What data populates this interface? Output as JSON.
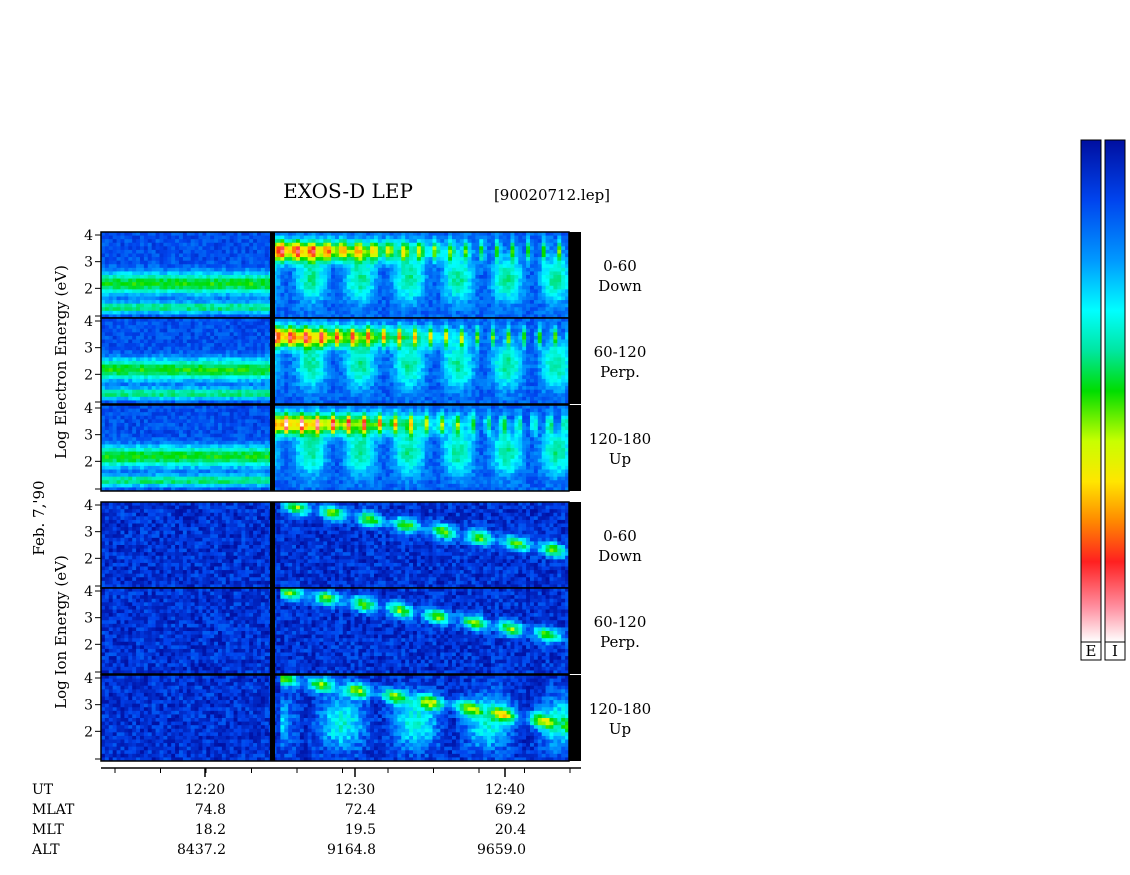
{
  "title": "EXOS-D LEP",
  "filename": "[90020712.lep]",
  "date_label": "Feb. 7,'90",
  "colorbar_labels": [
    "E",
    "I"
  ],
  "colors": {
    "background": "#ffffff",
    "colormap": [
      "#ffffff",
      "#ff8fa0",
      "#ff2020",
      "#ff8800",
      "#ffe600",
      "#c8ff00",
      "#00dd00",
      "#00e6a0",
      "#00ffff",
      "#0099ff",
      "#0044ee",
      "#000fa0"
    ]
  },
  "chart_data": {
    "type": "heatmap",
    "x_axis": {
      "label": "UT",
      "ticks": [
        "12:20",
        "12:30",
        "12:40"
      ],
      "rows": [
        {
          "label": "MLAT",
          "values": [
            "74.8",
            "72.4",
            "69.2"
          ]
        },
        {
          "label": "MLT",
          "values": [
            "18.2",
            "19.5",
            "20.4"
          ]
        },
        {
          "label": "ALT",
          "values": [
            "8437.2",
            "9164.8",
            "9659.0"
          ]
        }
      ]
    },
    "y_axis": {
      "ticks": [
        "2",
        "3",
        "4"
      ],
      "ylim": [
        1,
        4
      ]
    },
    "groups": [
      {
        "label_lines": [
          "Log",
          "Electron",
          "Energy",
          "(eV)"
        ],
        "panels": [
          {
            "angle": "0-60",
            "dir": "Down"
          },
          {
            "angle": "60-120",
            "dir": "Perp."
          },
          {
            "angle": "120-180",
            "dir": "Up"
          }
        ]
      },
      {
        "label_lines": [
          "Log",
          "Ion",
          "Energy",
          "(eV)"
        ],
        "panels": [
          {
            "angle": "0-60",
            "dir": "Down"
          },
          {
            "angle": "60-120",
            "dir": "Perp."
          },
          {
            "angle": "120-180",
            "dir": "Up"
          }
        ]
      }
    ]
  }
}
